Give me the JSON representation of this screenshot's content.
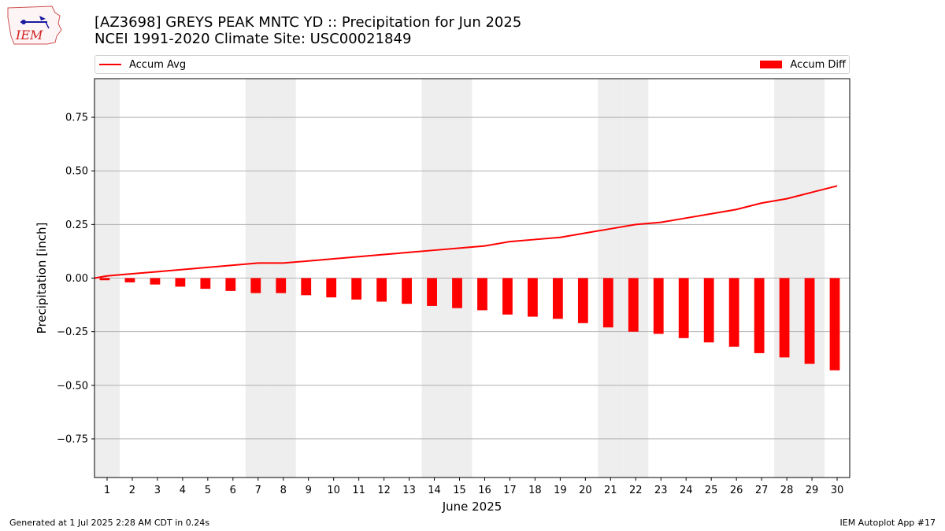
{
  "header": {
    "title_line1": "[AZ3698] GREYS PEAK MNTC YD :: Precipitation for Jun 2025",
    "title_line2": "NCEI 1991-2020 Climate Site: USC00021849",
    "logo_text": "IEM"
  },
  "legend": {
    "line_label": "Accum Avg",
    "bar_label": "Accum Diff"
  },
  "footer": {
    "left": "Generated at 1 Jul 2025 2:28 AM CDT in 0.24s",
    "right": "IEM Autoplot App #17"
  },
  "colors": {
    "series": "#ff0000",
    "weekend_band": "#eeeeee",
    "grid": "#b0b0b0"
  },
  "chart_data": {
    "type": "bar",
    "title": "[AZ3698] GREYS PEAK MNTC YD :: Precipitation for Jun 2025",
    "subtitle": "NCEI 1991-2020 Climate Site: USC00021849",
    "xlabel": "June 2025",
    "ylabel": "Precipitation [inch]",
    "xlim": [
      0.5,
      30.5
    ],
    "ylim": [
      -0.93,
      0.93
    ],
    "yticks": [
      -0.75,
      -0.5,
      -0.25,
      0.0,
      0.25,
      0.5,
      0.75
    ],
    "ytick_labels": [
      "−0.75",
      "−0.50",
      "−0.25",
      "0.00",
      "0.25",
      "0.50",
      "0.75"
    ],
    "categories": [
      "1",
      "2",
      "3",
      "4",
      "5",
      "6",
      "7",
      "8",
      "9",
      "10",
      "11",
      "12",
      "13",
      "14",
      "15",
      "16",
      "17",
      "18",
      "19",
      "20",
      "21",
      "22",
      "23",
      "24",
      "25",
      "26",
      "27",
      "28",
      "29",
      "30"
    ],
    "grid": "y",
    "legend_position": "top",
    "shaded_days": [
      1,
      7,
      8,
      14,
      15,
      21,
      22,
      28,
      29
    ],
    "series": [
      {
        "name": "Accum Avg",
        "type": "line",
        "values": [
          0.01,
          0.02,
          0.03,
          0.04,
          0.05,
          0.06,
          0.07,
          0.07,
          0.08,
          0.09,
          0.1,
          0.11,
          0.12,
          0.13,
          0.14,
          0.15,
          0.17,
          0.18,
          0.19,
          0.21,
          0.23,
          0.25,
          0.26,
          0.28,
          0.3,
          0.32,
          0.35,
          0.37,
          0.4,
          0.43
        ]
      },
      {
        "name": "Accum Diff",
        "type": "bar",
        "values": [
          -0.01,
          -0.02,
          -0.03,
          -0.04,
          -0.05,
          -0.06,
          -0.07,
          -0.07,
          -0.08,
          -0.09,
          -0.1,
          -0.11,
          -0.12,
          -0.13,
          -0.14,
          -0.15,
          -0.17,
          -0.18,
          -0.19,
          -0.21,
          -0.23,
          -0.25,
          -0.26,
          -0.28,
          -0.3,
          -0.32,
          -0.35,
          -0.37,
          -0.4,
          -0.43
        ]
      }
    ]
  }
}
